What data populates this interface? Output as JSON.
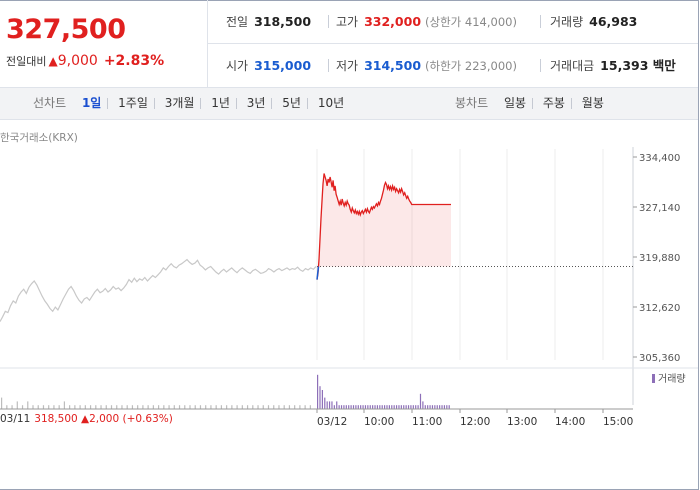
{
  "price": {
    "current": "327,500",
    "change_label": "전일대비",
    "change_icon": "up-triangle",
    "change_value": "9,000",
    "change_pct": "+2.83%"
  },
  "stats": {
    "prev_close": {
      "label": "전일",
      "value": "318,500"
    },
    "high": {
      "label": "고가",
      "value": "332,000",
      "sub": "(상한가 414,000)"
    },
    "volume": {
      "label": "거래량",
      "value": "46,983"
    },
    "open": {
      "label": "시가",
      "value": "315,000"
    },
    "low": {
      "label": "저가",
      "value": "314,500",
      "sub": "(하한가 223,000)"
    },
    "amount": {
      "label": "거래대금",
      "value": "15,393 백만"
    }
  },
  "line_tabs": {
    "title": "선차트",
    "items": [
      "1일",
      "1주일",
      "3개월",
      "1년",
      "3년",
      "5년",
      "10년"
    ],
    "active": "1일"
  },
  "candle_tabs": {
    "title": "봉차트",
    "items": [
      "일봉",
      "주봉",
      "월봉"
    ]
  },
  "source_label": "한국거래소(KRX)",
  "volume_legend": "거래량",
  "prev_day_summary": {
    "date": "03/11",
    "close": "318,500",
    "icon": "up-triangle",
    "change": "2,000",
    "pct": "(+0.63%)"
  },
  "colors": {
    "up": "#e0201f",
    "down": "#1a5cd0",
    "volume": "#8d6fb8",
    "prev_line": "#c8c8c8"
  },
  "chart_data": {
    "type": "line",
    "title": "",
    "ylim": [
      305360,
      334400
    ],
    "y_ticks": [
      "334,400",
      "327,140",
      "319,880",
      "312,620",
      "305,360"
    ],
    "x_ticks": [
      "03/11",
      "03/12",
      "10:00",
      "11:00",
      "12:00",
      "13:00",
      "14:00",
      "15:00"
    ],
    "baseline": 318500,
    "series": [
      {
        "x": [
          0,
          2,
          4,
          6,
          8,
          10,
          12,
          14,
          16,
          18,
          20,
          22,
          24,
          26,
          28,
          30,
          32,
          34,
          36,
          38,
          40,
          42,
          44,
          46,
          48,
          50,
          52,
          54,
          56,
          58,
          60,
          62,
          64,
          66,
          68,
          70,
          72,
          74,
          76,
          78,
          80,
          82,
          84,
          86,
          88,
          90,
          92,
          94,
          96,
          98,
          100,
          102,
          104,
          106,
          108,
          110,
          112,
          114,
          116,
          118,
          120,
          122,
          124,
          126,
          128,
          130,
          132,
          134,
          136,
          138,
          140,
          142,
          144,
          146,
          148,
          150,
          152,
          154,
          156,
          158,
          160,
          162,
          164,
          166,
          168,
          170,
          172,
          174,
          176,
          178,
          180,
          182,
          184,
          186,
          188,
          190,
          192,
          194,
          196,
          198,
          200,
          202,
          204,
          206,
          208,
          210,
          212,
          214,
          216,
          218,
          220,
          222,
          224,
          226,
          228,
          230,
          232,
          234,
          236,
          238,
          240
        ],
        "values": [
          310500,
          311200,
          312000,
          311800,
          312800,
          313500,
          313200,
          314200,
          314800,
          315200,
          314600,
          315500,
          316000,
          316400,
          315800,
          315000,
          314200,
          313500,
          313000,
          312400,
          312000,
          312600,
          312200,
          313000,
          313800,
          314500,
          315200,
          315600,
          315000,
          314200,
          313600,
          313200,
          313800,
          314000,
          313600,
          314200,
          314800,
          315200,
          314700,
          314900,
          315300,
          314800,
          315100,
          315600,
          315200,
          315400,
          315000,
          315400,
          315900,
          316600,
          316200,
          316800,
          316300,
          316700,
          316500,
          316900,
          316400,
          316800,
          317200,
          316900,
          317300,
          317700,
          318300,
          318000,
          318500,
          318900,
          318500,
          318300,
          318700,
          318900,
          319200,
          319500,
          319100,
          318800,
          319000,
          319400,
          318700,
          318400,
          318000,
          318300,
          318500,
          318100,
          317700,
          317400,
          317800,
          318100,
          317700,
          318000,
          318300,
          317900,
          317600,
          318000,
          318300,
          318000,
          317700,
          317500,
          317900,
          318100,
          317800,
          317500,
          317600,
          317800,
          318200,
          318000,
          317700,
          318000,
          318200,
          317900,
          318100,
          318300,
          318000,
          318200,
          318100,
          318400,
          318000,
          317800,
          318200,
          318000,
          318300,
          318100,
          318500
        ],
        "name": ""
      },
      {
        "x": [
          0,
          1,
          2,
          3,
          4,
          5,
          6,
          7,
          8,
          9,
          10,
          11,
          12,
          13,
          14,
          15,
          16,
          17,
          18,
          19,
          20,
          21,
          22,
          23,
          24,
          25,
          26,
          27,
          28,
          29,
          30,
          31,
          32,
          33,
          34,
          35,
          36,
          37,
          38,
          39,
          40,
          41,
          42,
          43,
          44,
          45,
          46,
          47,
          48,
          49,
          50,
          51,
          52,
          53,
          54,
          55,
          56,
          57,
          58,
          59,
          60,
          61,
          62,
          63,
          64,
          65,
          66,
          67,
          68,
          69,
          70,
          71,
          72,
          73,
          74,
          75,
          76,
          77,
          78,
          79,
          80,
          81,
          82,
          83,
          84,
          85,
          86,
          87,
          88,
          89,
          90,
          91,
          92,
          93,
          94,
          95,
          96,
          97,
          98,
          99,
          100,
          101,
          102,
          103,
          104,
          105,
          106,
          107,
          108,
          109,
          110,
          111,
          112,
          113,
          114,
          115,
          116,
          117,
          118,
          119,
          120,
          121,
          122,
          123,
          124,
          125,
          126,
          127,
          128,
          129,
          130,
          131,
          132,
          133
        ],
        "values": [
          316600,
          317500,
          319500,
          322500,
          325500,
          328000,
          330500,
          332000,
          331500,
          331000,
          330200,
          331200,
          330700,
          331500,
          330800,
          330000,
          331000,
          329500,
          330200,
          329000,
          328500,
          328000,
          327500,
          328000,
          327400,
          328300,
          327700,
          327300,
          327800,
          327400,
          328000,
          327600,
          327400,
          326800,
          326400,
          327000,
          326600,
          326300,
          326700,
          326200,
          326500,
          326100,
          326500,
          326000,
          326400,
          326600,
          326200,
          326500,
          326800,
          326400,
          326900,
          326500,
          326300,
          326700,
          327100,
          326800,
          327200,
          327000,
          327300,
          327600,
          327300,
          327800,
          327500,
          328000,
          328400,
          329000,
          329600,
          330300,
          330700,
          330400,
          329800,
          330200,
          329700,
          330100,
          329600,
          330200,
          329700,
          330000,
          329400,
          329800,
          329500,
          329200,
          329700,
          329300,
          329800,
          329400,
          328900,
          329200,
          328800,
          328400,
          328700,
          328300,
          328000,
          327800,
          327500,
          327500,
          327500,
          327500,
          327500,
          327500,
          327500,
          327500,
          327500,
          327500,
          327500,
          327500,
          327500,
          327500,
          327500,
          327500,
          327500,
          327500,
          327500,
          327500,
          327500,
          327500,
          327500,
          327500,
          327500,
          327500,
          327500,
          327500,
          327500,
          327500,
          327500,
          327500,
          327500,
          327500,
          327500,
          327500,
          327500,
          327500,
          327500,
          327500
        ],
        "name": ""
      }
    ],
    "volume_series": {
      "prev": [
        3,
        1,
        1,
        2,
        1,
        2,
        1,
        1,
        1,
        1,
        1,
        1,
        2,
        1,
        1,
        1,
        1,
        1,
        1,
        1,
        1,
        1,
        1,
        1,
        1,
        1,
        1,
        1,
        1,
        1,
        1,
        1,
        1,
        1,
        1,
        1,
        1,
        1,
        1,
        1,
        1,
        1,
        1,
        1,
        1,
        1,
        1,
        1,
        1,
        1,
        1,
        1,
        1,
        1,
        1,
        1,
        1,
        1,
        1,
        1
      ],
      "today": [
        9,
        6,
        5,
        3,
        2,
        2,
        2,
        1,
        2,
        1,
        1,
        1,
        1,
        1,
        1,
        1,
        1,
        1,
        1,
        1,
        1,
        1,
        1,
        1,
        1,
        1,
        1,
        1,
        1,
        1,
        1,
        1,
        1,
        1,
        1,
        1,
        1,
        1,
        1,
        1,
        1,
        1,
        1,
        4,
        2,
        1,
        1,
        1,
        1,
        1,
        1,
        1,
        1,
        1,
        1,
        1
      ]
    }
  }
}
